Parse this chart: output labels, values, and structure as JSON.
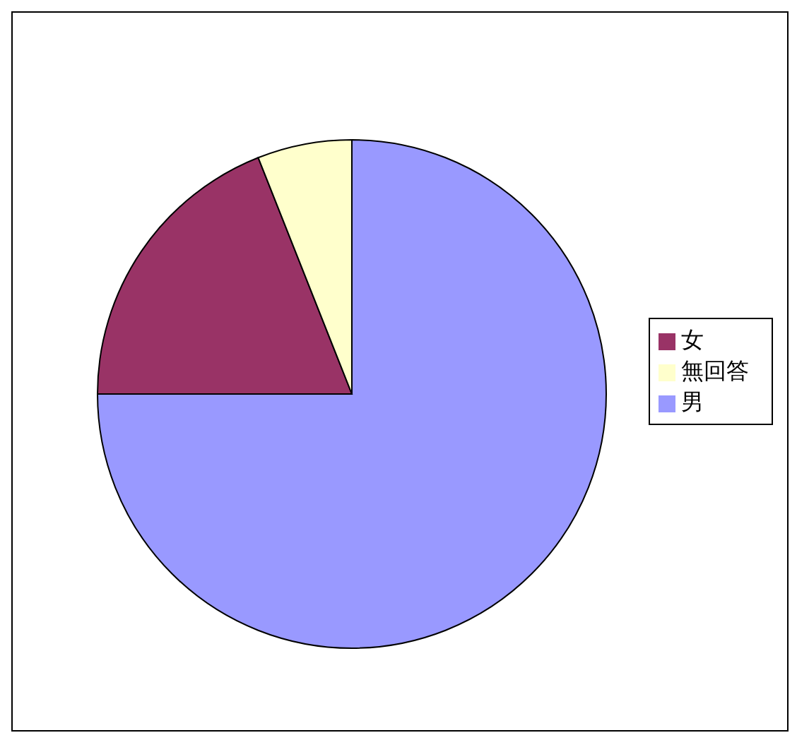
{
  "chart_data": {
    "type": "pie",
    "categories": [
      "男",
      "女",
      "無回答"
    ],
    "values": [
      75,
      19,
      6
    ],
    "colors": [
      "#9999ff",
      "#993366",
      "#ffffcc"
    ],
    "legend": "right"
  }
}
